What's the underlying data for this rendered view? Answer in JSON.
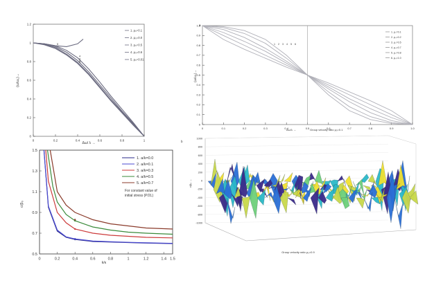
{
  "chart_data": [
    {
      "id": "top-left",
      "type": "line",
      "xlabel": "Δω/ λ →",
      "ylabel": "(ω/ω₀)→",
      "xlim": [
        0,
        1
      ],
      "ylim": [
        0,
        1.2
      ],
      "xticks": [
        "0",
        "0.2",
        "0.4",
        "0.6",
        "0.8",
        "1"
      ],
      "yticks": [
        "0",
        "0.2",
        "0.4",
        "0.6",
        "0.8",
        "1",
        "1.2"
      ],
      "legend_position": "top-right",
      "series": [
        {
          "name": "1. μ₀=0.1",
          "x": [
            0,
            0.1,
            0.2,
            0.3,
            0.4,
            0.45
          ],
          "y": [
            1,
            0.99,
            0.97,
            0.96,
            0.99,
            1.04
          ],
          "marker": "5"
        },
        {
          "name": "2. μ₀=0.0",
          "x": [
            0,
            0.1,
            0.2,
            0.3,
            0.4,
            0.5,
            0.6,
            0.7,
            0.8,
            0.9,
            1.0
          ],
          "y": [
            1,
            0.98,
            0.94,
            0.87,
            0.78,
            0.66,
            0.52,
            0.38,
            0.25,
            0.12,
            0.0
          ],
          "marker": "1"
        },
        {
          "name": "3. μ₀=0.5",
          "x": [
            0,
            0.1,
            0.2,
            0.3,
            0.4,
            0.5,
            0.6,
            0.7,
            0.8,
            0.9,
            1.0
          ],
          "y": [
            1,
            0.985,
            0.95,
            0.88,
            0.79,
            0.67,
            0.53,
            0.39,
            0.26,
            0.13,
            0.0
          ],
          "marker": "2"
        },
        {
          "name": "4. μ₀=0.6",
          "x": [
            0,
            0.1,
            0.2,
            0.3,
            0.4,
            0.5,
            0.6,
            0.7,
            0.8,
            0.9,
            1.0
          ],
          "y": [
            1,
            0.99,
            0.96,
            0.9,
            0.81,
            0.69,
            0.55,
            0.41,
            0.27,
            0.14,
            0.0
          ],
          "marker": "3"
        },
        {
          "name": "5. μ₀=0.01",
          "x": [
            0,
            0.1,
            0.2,
            0.3,
            0.4,
            0.5,
            0.6,
            0.7,
            0.8,
            0.9,
            1.0
          ],
          "y": [
            1,
            0.99,
            0.97,
            0.92,
            0.84,
            0.72,
            0.58,
            0.43,
            0.29,
            0.15,
            0.0
          ],
          "marker": "4"
        }
      ]
    },
    {
      "id": "top-right",
      "type": "line",
      "title": "a",
      "xlabel": "Δω/λ →",
      "ylabel": "(ω/ω₀)→",
      "xlim": [
        0,
        1
      ],
      "ylim": [
        0,
        1
      ],
      "xticks": [
        "0",
        "0.1",
        "0.2",
        "0.3",
        "0.4",
        "0.5",
        "0.6",
        "0.7",
        "0.8",
        "0.9",
        "1.0"
      ],
      "yticks": [
        "0",
        "0.1",
        "0.2",
        "0.3",
        "0.4",
        "0.5",
        "0.6",
        "0.7",
        "0.8",
        "0.9",
        "1.0"
      ],
      "legend_position": "top-right",
      "series": [
        {
          "name": "1. μ₀=0.1",
          "x": [
            0,
            0.1,
            0.2,
            0.3,
            0.4,
            0.5,
            0.6,
            0.7,
            0.8,
            0.9,
            1.0
          ],
          "y": [
            1,
            0.99,
            0.95,
            0.86,
            0.7,
            0.5,
            0.3,
            0.14,
            0.05,
            0.01,
            0.0
          ]
        },
        {
          "name": "2. μ₀=0.2",
          "x": [
            0,
            0.1,
            0.2,
            0.3,
            0.4,
            0.5,
            0.6,
            0.7,
            0.8,
            0.9,
            1.0
          ],
          "y": [
            1,
            0.98,
            0.92,
            0.82,
            0.67,
            0.5,
            0.33,
            0.18,
            0.08,
            0.02,
            0.0
          ]
        },
        {
          "name": "3. μ₀=0.5",
          "x": [
            0,
            0.1,
            0.2,
            0.3,
            0.4,
            0.5,
            0.6,
            0.7,
            0.8,
            0.9,
            1.0
          ],
          "y": [
            1,
            0.96,
            0.88,
            0.77,
            0.64,
            0.5,
            0.36,
            0.23,
            0.12,
            0.04,
            0.0
          ]
        },
        {
          "name": "4. μ₀=0.7",
          "x": [
            0,
            0.1,
            0.2,
            0.3,
            0.4,
            0.5,
            0.6,
            0.7,
            0.8,
            0.9,
            1.0
          ],
          "y": [
            1,
            0.93,
            0.84,
            0.74,
            0.62,
            0.5,
            0.38,
            0.26,
            0.16,
            0.07,
            0.0
          ]
        },
        {
          "name": "5. μ₀=0.8",
          "x": [
            0,
            0.1,
            0.2,
            0.3,
            0.4,
            0.5,
            0.6,
            0.7,
            0.8,
            0.9,
            1.0
          ],
          "y": [
            1,
            0.9,
            0.8,
            0.7,
            0.6,
            0.5,
            0.4,
            0.3,
            0.2,
            0.1,
            0.0
          ]
        },
        {
          "name": "6. μ₀=1.0",
          "x": [
            0,
            0.1,
            0.2,
            0.3,
            0.4,
            0.5,
            0.6,
            0.7,
            0.8,
            0.9,
            1.0
          ],
          "y": [
            1,
            0.86,
            0.76,
            0.67,
            0.58,
            0.5,
            0.42,
            0.33,
            0.24,
            0.14,
            0.0
          ]
        }
      ],
      "annotation": "Group velocity ratio μ₀=0.1"
    },
    {
      "id": "bottom-left",
      "type": "line",
      "xlabel": "k/κ",
      "ylabel": "c/β₀",
      "xlim": [
        0,
        1.5
      ],
      "ylim": [
        0.5,
        1.5
      ],
      "xticks": [
        "0",
        "0.2",
        "0.4",
        "0.6",
        "0.8",
        "1",
        "1.2",
        "1.4",
        "1.5"
      ],
      "yticks": [
        "0.5",
        "0.7",
        "0.9",
        "1.1",
        "1.3",
        "1.5"
      ],
      "legend_position": "top-right",
      "note": [
        "For constant value of",
        "initial stress (P/2L)"
      ],
      "series": [
        {
          "name": "1.  a/k=0.0",
          "color": "#2a2a8a",
          "x": [
            0.05,
            0.1,
            0.2,
            0.3,
            0.4,
            0.6,
            0.8,
            1.0,
            1.2,
            1.5
          ],
          "y": [
            1.5,
            0.95,
            0.72,
            0.66,
            0.64,
            0.62,
            0.615,
            0.61,
            0.605,
            0.6
          ]
        },
        {
          "name": "2.  a/k=0.1",
          "color": "#4a4ad0",
          "x": [
            0.05,
            0.1,
            0.2,
            0.3,
            0.4,
            0.6,
            0.8,
            1.0,
            1.2,
            1.5
          ],
          "y": [
            1.5,
            0.96,
            0.73,
            0.665,
            0.645,
            0.625,
            0.618,
            0.612,
            0.607,
            0.602
          ]
        },
        {
          "name": "3.  a/k=0.3",
          "color": "#cc3a3a",
          "x": [
            0.07,
            0.1,
            0.2,
            0.3,
            0.4,
            0.6,
            0.8,
            1.0,
            1.2,
            1.5
          ],
          "y": [
            1.5,
            1.2,
            0.9,
            0.8,
            0.74,
            0.7,
            0.68,
            0.67,
            0.66,
            0.655
          ]
        },
        {
          "name": "4.  a/k=0.5",
          "color": "#3a8a3a",
          "x": [
            0.09,
            0.15,
            0.2,
            0.3,
            0.4,
            0.6,
            0.8,
            1.0,
            1.2,
            1.5
          ],
          "y": [
            1.5,
            1.15,
            1.0,
            0.88,
            0.82,
            0.76,
            0.73,
            0.71,
            0.7,
            0.69
          ]
        },
        {
          "name": "5.  a/k=0.7",
          "color": "#8a3a2a",
          "x": [
            0.12,
            0.2,
            0.3,
            0.4,
            0.6,
            0.8,
            1.0,
            1.2,
            1.5
          ],
          "y": [
            1.5,
            1.1,
            0.97,
            0.9,
            0.83,
            0.79,
            0.77,
            0.75,
            0.74
          ]
        }
      ]
    },
    {
      "id": "bottom-right",
      "type": "surface",
      "title": "b",
      "zlabel": "c/β₀ →",
      "xlabel": "Group velocity ratio μ₀=0.9",
      "zticks": [
        "1000",
        "800",
        "600",
        "400",
        "200",
        "0",
        "-200",
        "-400",
        "-600",
        "-800",
        "-1000"
      ],
      "colormap": [
        "#3b2a8a",
        "#2a6fd6",
        "#2ab8c8",
        "#6ed07a",
        "#c8d84a",
        "#f0e030"
      ]
    }
  ]
}
